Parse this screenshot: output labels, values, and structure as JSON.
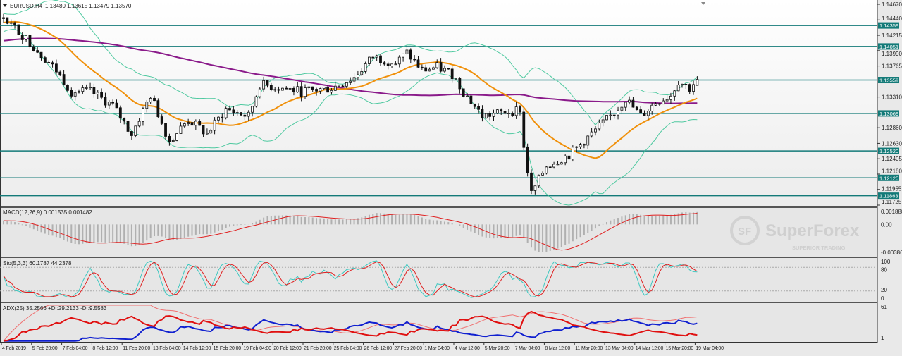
{
  "header": {
    "symbol": "EURUSD.H4",
    "values": "1.13480 1.13615 1.13479 1.13570",
    "menu_icon": "triangle-down-icon"
  },
  "watermark": {
    "brand": "SuperForex",
    "tagline": "SUPERIOR TRADING"
  },
  "colors": {
    "level": "#137a78",
    "ma_fast": "#f0900a",
    "ma_slow": "#8a1a8a",
    "bands": "#4fc9a0",
    "macd_signal": "#e02020",
    "macd_hist": "#b0b0b0",
    "sto_k": "#3cc8c0",
    "sto_d": "#e02020",
    "adx": "#f07070",
    "plus_di": "#1020d0",
    "minus_di": "#e01010"
  },
  "chart_data": {
    "type": "candlestick",
    "title": "EURUSD.H4",
    "ohlc_last": {
      "open": 1.1348,
      "high": 1.13615,
      "low": 1.13479,
      "close": 1.1357
    },
    "bars": 185,
    "close_anchors": [
      [
        0,
        1.14474
      ],
      [
        7,
        1.14112
      ],
      [
        14,
        1.13699
      ],
      [
        18,
        1.13389
      ],
      [
        23,
        1.13389
      ],
      [
        29,
        1.13182
      ],
      [
        34,
        1.12769
      ],
      [
        39,
        1.13337
      ],
      [
        44,
        1.12665
      ],
      [
        49,
        1.12975
      ],
      [
        54,
        1.12769
      ],
      [
        59,
        1.1313
      ],
      [
        65,
        1.13027
      ],
      [
        68,
        1.13492
      ],
      [
        74,
        1.1344
      ],
      [
        79,
        1.13389
      ],
      [
        87,
        1.1344
      ],
      [
        93,
        1.13595
      ],
      [
        98,
        1.13905
      ],
      [
        104,
        1.13802
      ],
      [
        107,
        1.13957
      ],
      [
        111,
        1.13699
      ],
      [
        115,
        1.1375
      ],
      [
        119,
        1.13647
      ],
      [
        122,
        1.13389
      ],
      [
        127,
        1.13027
      ],
      [
        132,
        1.13079
      ],
      [
        137,
        1.1313
      ],
      [
        138,
        1.12562
      ],
      [
        140,
        1.1189
      ],
      [
        144,
        1.12304
      ],
      [
        150,
        1.12459
      ],
      [
        154,
        1.12665
      ],
      [
        158,
        1.12872
      ],
      [
        162,
        1.13079
      ],
      [
        165,
        1.13285
      ],
      [
        169,
        1.13027
      ],
      [
        173,
        1.13234
      ],
      [
        177,
        1.13337
      ],
      [
        179,
        1.13544
      ],
      [
        182,
        1.1344
      ],
      [
        184,
        1.1357
      ]
    ],
    "price_axis": {
      "range": [
        1.11725,
        1.1467
      ],
      "ticks": [
        "1.14670",
        "1.14440",
        "1.14215",
        "1.13990",
        "1.13765",
        "1.13310",
        "1.12860",
        "1.12630",
        "1.12405",
        "1.12180",
        "1.11955",
        "1.11725"
      ]
    },
    "levels": [
      "1.14359",
      "1.14051",
      "1.13559",
      "1.13069",
      "1.12520",
      "1.12125",
      "1.11863"
    ],
    "time_axis": [
      "4 Feb 2019",
      "5 Feb 20:00",
      "7 Feb 04:00",
      "8 Feb 12:00",
      "11 Feb 20:00",
      "13 Feb 04:00",
      "14 Feb 12:00",
      "15 Feb 20:00",
      "19 Feb 04:00",
      "20 Feb 12:00",
      "21 Feb 20:00",
      "25 Feb 04:00",
      "26 Feb 12:00",
      "27 Feb 20:00",
      "1 Mar 04:00",
      "4 Mar 12:00",
      "5 Mar 20:00",
      "7 Mar 04:00",
      "8 Mar 12:00",
      "11 Mar 20:00",
      "13 Mar 04:00",
      "14 Mar 12:00",
      "15 Mar 20:00",
      "19 Mar 04:00"
    ],
    "indicators": {
      "macd": {
        "label": "MACD(12,26,9) 0.001535 0.001482",
        "range": [
          -0.003864,
          0.001888
        ],
        "ticks": [
          "0.001888",
          "0.00",
          "-0.003864"
        ]
      },
      "stochastic": {
        "label": "Sto(5,3,3) 60.1787 44.2378",
        "range": [
          0,
          100
        ],
        "ticks": [
          "100",
          "80",
          "20",
          "0"
        ]
      },
      "adx": {
        "label": "ADX(25) 35.2566 +DI:29.2133 -DI:9.5583",
        "range": [
          1,
          61
        ],
        "ticks": [
          "61",
          "1"
        ]
      }
    }
  }
}
